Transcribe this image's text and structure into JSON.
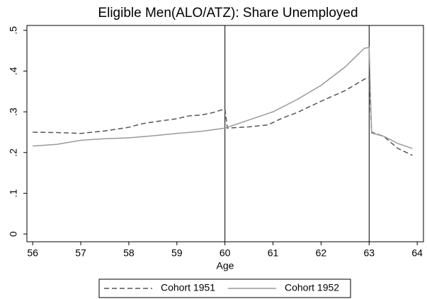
{
  "chart_data": {
    "type": "line",
    "title": "Eligible Men(ALO/ATZ): Share Unemployed",
    "x_label": "Age",
    "xlim": [
      55.88,
      64.13
    ],
    "xticks": [
      56,
      57,
      58,
      59,
      60,
      61,
      62,
      63,
      64
    ],
    "ylim": [
      -0.019,
      0.512
    ],
    "yticks": [
      0,
      {
        "value": 0.1,
        "label": ".1"
      },
      {
        "value": 0.2,
        "label": ".2"
      },
      {
        "value": 0.3,
        "label": ".3"
      },
      {
        "value": 0.4,
        "label": ".4"
      },
      {
        "value": 0.5,
        "label": ".5"
      }
    ],
    "xlines": [
      60,
      63
    ],
    "legend": "bottom",
    "series": [
      {
        "name": "Cohort 1951",
        "color": "#555555",
        "dash": true,
        "x": [
          56,
          56.5,
          57,
          57.5,
          58,
          58.25,
          58.5,
          59,
          59.25,
          59.5,
          59.75,
          60,
          60.05,
          60.5,
          60.9,
          61.2,
          61.5,
          62,
          62.5,
          62.9,
          63,
          63.05,
          63.3,
          63.6,
          63.9
        ],
        "values": [
          0.25,
          0.249,
          0.247,
          0.253,
          0.262,
          0.27,
          0.275,
          0.283,
          0.29,
          0.292,
          0.298,
          0.307,
          0.26,
          0.263,
          0.268,
          0.285,
          0.298,
          0.326,
          0.352,
          0.38,
          0.385,
          0.25,
          0.24,
          0.21,
          0.193
        ]
      },
      {
        "name": "Cohort 1952",
        "color": "#999999",
        "dash": false,
        "x": [
          56,
          56.5,
          57,
          57.5,
          58,
          58.5,
          59,
          59.5,
          60,
          60.5,
          61,
          61.5,
          62,
          62.5,
          62.9,
          63,
          63.05,
          63.3,
          63.6,
          63.9
        ],
        "values": [
          0.216,
          0.22,
          0.23,
          0.234,
          0.236,
          0.241,
          0.247,
          0.252,
          0.26,
          0.28,
          0.3,
          0.33,
          0.365,
          0.41,
          0.456,
          0.458,
          0.248,
          0.24,
          0.222,
          0.21
        ]
      }
    ]
  }
}
